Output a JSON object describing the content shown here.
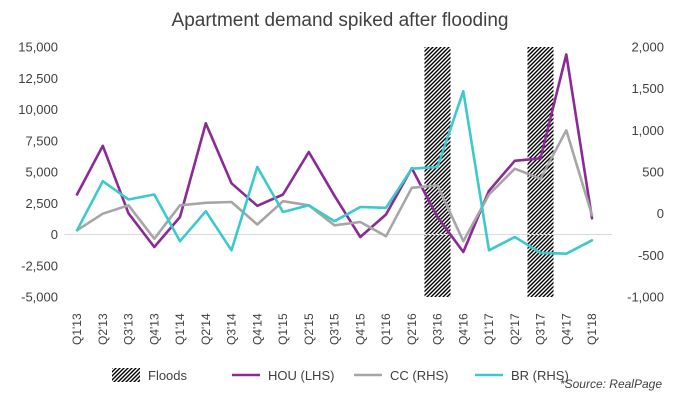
{
  "chart_data": {
    "type": "line",
    "title": "Apartment demand spiked after flooding",
    "source": "*Source: RealPage",
    "categories": [
      "Q1'13",
      "Q2'13",
      "Q3'13",
      "Q4'13",
      "Q1'14",
      "Q2'14",
      "Q3'14",
      "Q4'14",
      "Q1'15",
      "Q2'15",
      "Q3'15",
      "Q4'15",
      "Q1'16",
      "Q2'16",
      "Q3'16",
      "Q4'16",
      "Q1'17",
      "Q2'17",
      "Q3'17",
      "Q4'17",
      "Q1'18"
    ],
    "y_left": {
      "ticks": [
        -5000,
        -2500,
        0,
        2500,
        5000,
        7500,
        10000,
        12500,
        15000
      ],
      "labels": [
        "-5,000",
        "-2,500",
        "0",
        "2,500",
        "5,000",
        "7,500",
        "10,000",
        "12,500",
        "15,000"
      ],
      "ylim": [
        -5000,
        15000
      ]
    },
    "y_right": {
      "ticks": [
        -1000,
        -500,
        0,
        500,
        1000,
        1500,
        2000
      ],
      "labels": [
        "-1,000",
        "-500",
        "0",
        "500",
        "1,000",
        "1,500",
        "2,000"
      ],
      "ylim": [
        -1000,
        2000
      ]
    },
    "flood_periods": [
      "Q3'16",
      "Q3'17"
    ],
    "series": [
      {
        "name": "HOU (LHS)",
        "axis": "left",
        "color": "#8b2a96",
        "values": [
          3200,
          7100,
          1700,
          -1000,
          1400,
          8900,
          4100,
          2300,
          3200,
          6600,
          3100,
          -200,
          1600,
          5300,
          1400,
          -1400,
          3500,
          5900,
          6100,
          14400,
          1300
        ]
      },
      {
        "name": "CC (RHS)",
        "axis": "right",
        "color": "#a6a6a6",
        "values": [
          -200,
          0,
          100,
          -300,
          100,
          130,
          140,
          -130,
          150,
          100,
          -140,
          -100,
          -270,
          310,
          340,
          -330,
          230,
          540,
          420,
          1000,
          -20
        ]
      },
      {
        "name": "BR (RHS)",
        "axis": "right",
        "color": "#3cc9cc",
        "values": [
          -200,
          390,
          170,
          230,
          -330,
          30,
          -440,
          560,
          20,
          100,
          -90,
          80,
          70,
          540,
          560,
          1470,
          -440,
          -280,
          -470,
          -480,
          -320
        ]
      }
    ],
    "legend": [
      {
        "label": "Floods",
        "kind": "hatch"
      },
      {
        "label": "HOU (LHS)",
        "kind": "line",
        "color": "#8b2a96"
      },
      {
        "label": "CC (RHS)",
        "kind": "line",
        "color": "#a6a6a6"
      },
      {
        "label": "BR (RHS)",
        "kind": "line",
        "color": "#3cc9cc"
      }
    ],
    "legend_position": "bottom",
    "grid": false
  }
}
